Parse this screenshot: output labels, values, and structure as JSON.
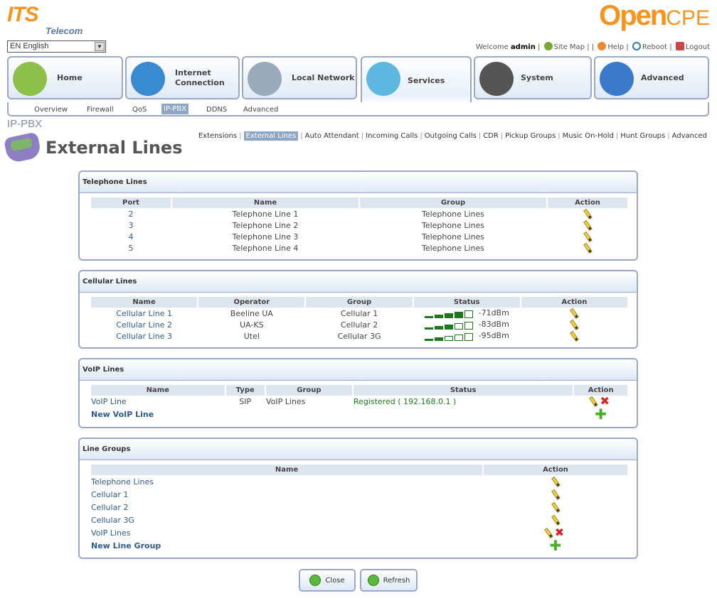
{
  "branding": {
    "its": "ITS",
    "its_sub": "Telecom",
    "opencpe_main": "Open",
    "opencpe_sub": "CPE"
  },
  "language": {
    "selected": "EN English"
  },
  "top_links": {
    "welcome": "Welcome",
    "user": "admin",
    "site_map": "Site Map",
    "help": "Help",
    "reboot": "Reboot",
    "logout": "Logout"
  },
  "main_tabs": [
    {
      "label": "Home",
      "icon": "house-icon",
      "color": "#8cc04a"
    },
    {
      "label": "Internet Connection",
      "icon": "globe-icon",
      "color": "#3a8ad0"
    },
    {
      "label": "Local Network",
      "icon": "computers-icon",
      "color": "#9ab"
    },
    {
      "label": "Services",
      "icon": "disc-icon",
      "color": "#5fb8e0",
      "active": true
    },
    {
      "label": "System",
      "icon": "router-icon",
      "color": "#555"
    },
    {
      "label": "Advanced",
      "icon": "tools-icon",
      "color": "#3a7ac8"
    }
  ],
  "sub_nav": [
    {
      "label": "Overview"
    },
    {
      "label": "Firewall"
    },
    {
      "label": "QoS"
    },
    {
      "label": "IP-PBX",
      "active": true
    },
    {
      "label": "DDNS"
    },
    {
      "label": "Advanced"
    }
  ],
  "section": "IP-PBX",
  "pbx_tabs": [
    {
      "label": "Extensions"
    },
    {
      "label": "External Lines",
      "active": true
    },
    {
      "label": "Auto Attendant"
    },
    {
      "label": "Incoming Calls"
    },
    {
      "label": "Outgoing Calls"
    },
    {
      "label": "CDR"
    },
    {
      "label": "Pickup Groups"
    },
    {
      "label": "Music On-Hold"
    },
    {
      "label": "Hunt Groups"
    },
    {
      "label": "Advanced"
    }
  ],
  "page_title": "External Lines",
  "telephone": {
    "title": "Telephone Lines",
    "headers": [
      "Port",
      "Name",
      "Group",
      "Action"
    ],
    "rows": [
      [
        "2",
        "Telephone Line 1",
        "Telephone Lines"
      ],
      [
        "3",
        "Telephone Line 2",
        "Telephone Lines"
      ],
      [
        "4",
        "Telephone Line 3",
        "Telephone Lines"
      ],
      [
        "5",
        "Telephone Line 4",
        "Telephone Lines"
      ]
    ]
  },
  "cellular": {
    "title": "Cellular Lines",
    "headers": [
      "Name",
      "Operator",
      "Group",
      "Status",
      "Action"
    ],
    "rows": [
      {
        "name": "Cellular Line 1",
        "operator": "Beeline UA",
        "group": "Cellular 1",
        "signal_bars": 4,
        "signal": "-71dBm"
      },
      {
        "name": "Cellular Line 2",
        "operator": "UA-KS",
        "group": "Cellular 2",
        "signal_bars": 3,
        "signal": "-83dBm"
      },
      {
        "name": "Cellular Line 3",
        "operator": "Utel",
        "group": "Cellular 3G",
        "signal_bars": 2,
        "signal": "-95dBm"
      }
    ]
  },
  "voip": {
    "title": "VoIP Lines",
    "headers": [
      "Name",
      "Type",
      "Group",
      "Status",
      "Action"
    ],
    "rows": [
      {
        "name": "VoIP Line",
        "type": "SIP",
        "group": "VoIP Lines",
        "status": "Registered ( 192.168.0.1 )"
      }
    ],
    "new_label": "New VoIP Line"
  },
  "groups": {
    "title": "Line Groups",
    "headers": [
      "Name",
      "Action"
    ],
    "rows": [
      {
        "name": "Telephone Lines"
      },
      {
        "name": "Cellular 1"
      },
      {
        "name": "Cellular 2"
      },
      {
        "name": "Cellular 3G"
      },
      {
        "name": "VoIP Lines",
        "deletable": true
      }
    ],
    "new_label": "New Line Group"
  },
  "buttons": {
    "close": "Close",
    "refresh": "Refresh"
  }
}
